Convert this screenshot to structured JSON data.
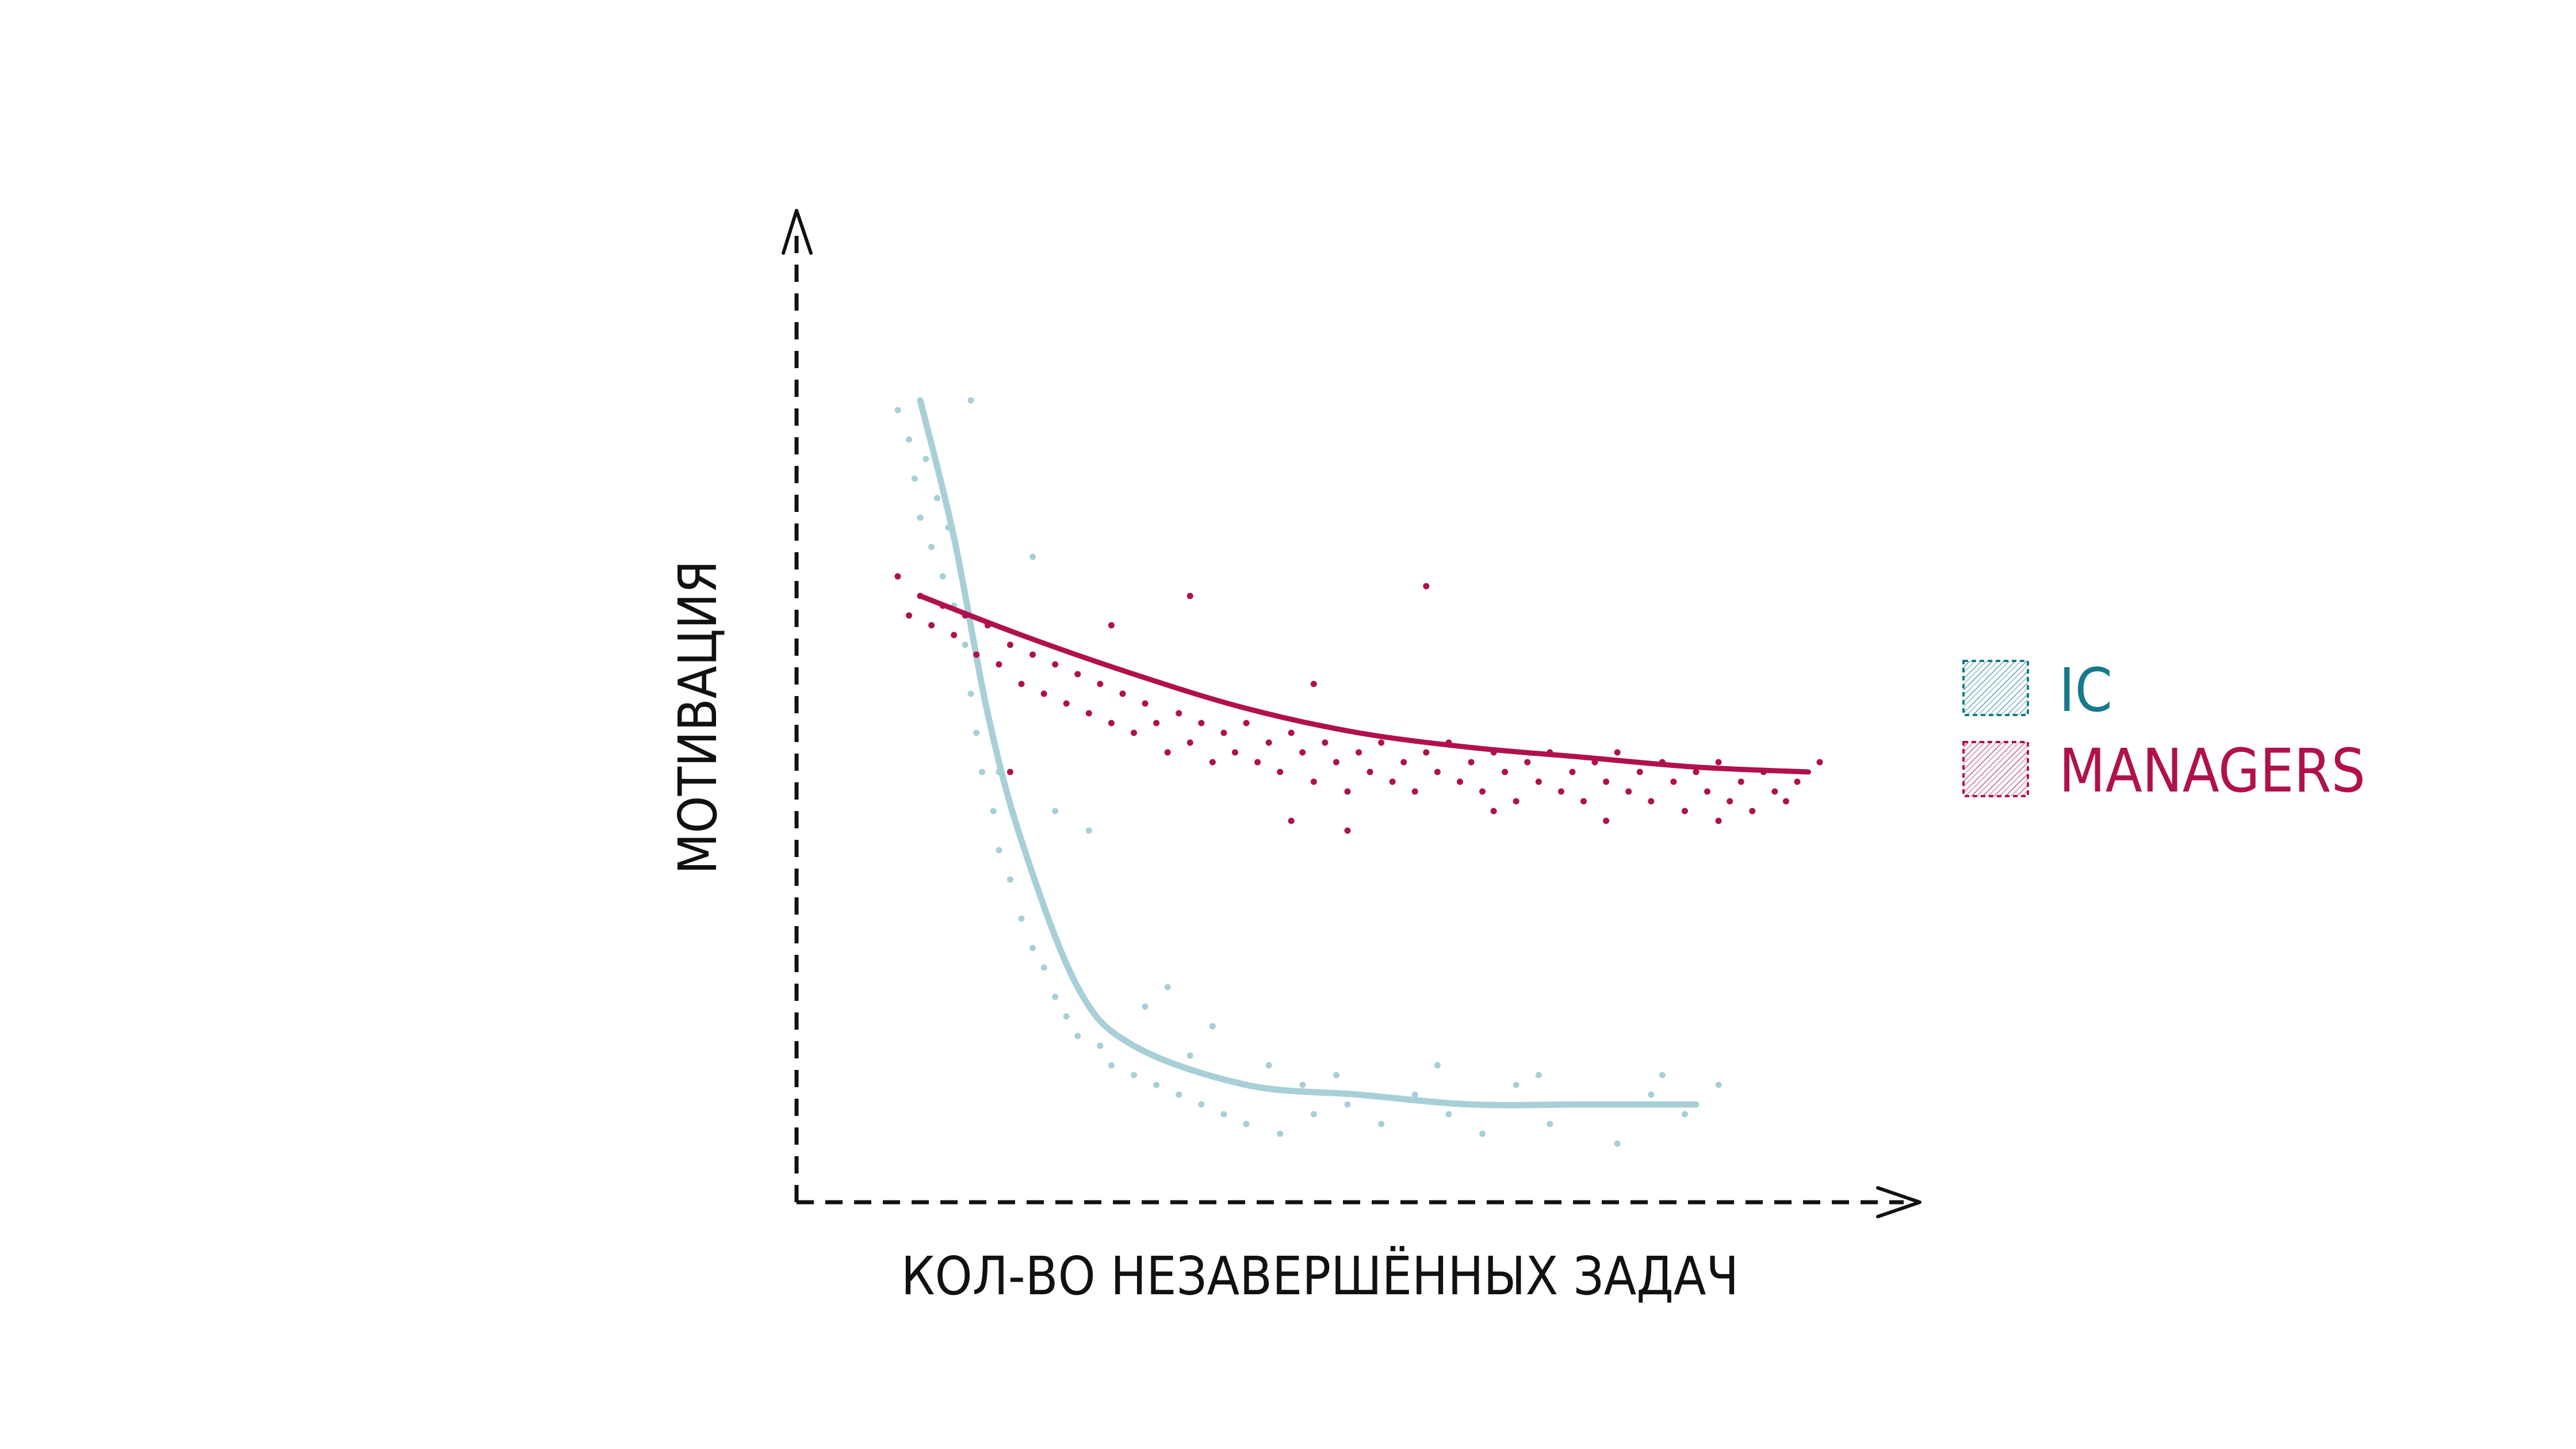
{
  "chart_data": {
    "type": "scatter",
    "title": "",
    "xlabel": "КОЛ-ВО НЕЗАВЕРШЁННЫХ ЗАДАЧ",
    "ylabel": "МОТИВАЦИЯ",
    "xlim": [
      0,
      100
    ],
    "ylim": [
      0,
      100
    ],
    "grid": false,
    "legend_position": "right",
    "colors": {
      "ic": "#a8cfd7",
      "ic_text": "#167a8c",
      "managers": "#b0114c"
    },
    "series": [
      {
        "name": "IC",
        "trend": [
          {
            "x": 11,
            "y": 82
          },
          {
            "x": 14,
            "y": 68
          },
          {
            "x": 17,
            "y": 50
          },
          {
            "x": 20,
            "y": 37
          },
          {
            "x": 25,
            "y": 22
          },
          {
            "x": 30,
            "y": 16
          },
          {
            "x": 40,
            "y": 12
          },
          {
            "x": 50,
            "y": 11
          },
          {
            "x": 60,
            "y": 10
          },
          {
            "x": 70,
            "y": 10
          },
          {
            "x": 80,
            "y": 10
          }
        ],
        "points": [
          {
            "x": 9,
            "y": 81
          },
          {
            "x": 10,
            "y": 78
          },
          {
            "x": 10.5,
            "y": 74
          },
          {
            "x": 11,
            "y": 70
          },
          {
            "x": 11.5,
            "y": 76
          },
          {
            "x": 12,
            "y": 67
          },
          {
            "x": 12.5,
            "y": 72
          },
          {
            "x": 13,
            "y": 64
          },
          {
            "x": 13.5,
            "y": 69
          },
          {
            "x": 14,
            "y": 61
          },
          {
            "x": 15,
            "y": 57
          },
          {
            "x": 15.5,
            "y": 52
          },
          {
            "x": 16,
            "y": 48
          },
          {
            "x": 16.5,
            "y": 44
          },
          {
            "x": 17.5,
            "y": 40
          },
          {
            "x": 18,
            "y": 36
          },
          {
            "x": 19,
            "y": 33
          },
          {
            "x": 20,
            "y": 29
          },
          {
            "x": 21,
            "y": 26
          },
          {
            "x": 22,
            "y": 24
          },
          {
            "x": 23,
            "y": 21
          },
          {
            "x": 24,
            "y": 19
          },
          {
            "x": 25,
            "y": 17
          },
          {
            "x": 27,
            "y": 16
          },
          {
            "x": 28,
            "y": 14
          },
          {
            "x": 30,
            "y": 13
          },
          {
            "x": 32,
            "y": 12
          },
          {
            "x": 34,
            "y": 11
          },
          {
            "x": 36,
            "y": 10
          },
          {
            "x": 38,
            "y": 9
          },
          {
            "x": 40,
            "y": 8
          },
          {
            "x": 43,
            "y": 7
          },
          {
            "x": 46,
            "y": 9
          },
          {
            "x": 49,
            "y": 10
          },
          {
            "x": 52,
            "y": 8
          },
          {
            "x": 55,
            "y": 11
          },
          {
            "x": 58,
            "y": 9
          },
          {
            "x": 61,
            "y": 7
          },
          {
            "x": 64,
            "y": 12
          },
          {
            "x": 67,
            "y": 8
          },
          {
            "x": 70,
            "y": 10
          },
          {
            "x": 73,
            "y": 6
          },
          {
            "x": 76,
            "y": 11
          },
          {
            "x": 79,
            "y": 9
          },
          {
            "x": 82,
            "y": 12
          },
          {
            "x": 15.5,
            "y": 82
          },
          {
            "x": 21,
            "y": 66
          },
          {
            "x": 23,
            "y": 40
          },
          {
            "x": 26,
            "y": 38
          },
          {
            "x": 18,
            "y": 44
          },
          {
            "x": 31,
            "y": 20
          },
          {
            "x": 35,
            "y": 15
          },
          {
            "x": 42,
            "y": 14
          },
          {
            "x": 48,
            "y": 13
          },
          {
            "x": 57,
            "y": 14
          },
          {
            "x": 66,
            "y": 13
          },
          {
            "x": 77,
            "y": 13
          },
          {
            "x": 33,
            "y": 22
          },
          {
            "x": 37,
            "y": 18
          },
          {
            "x": 45,
            "y": 12
          }
        ]
      },
      {
        "name": "MANAGERS",
        "trend": [
          {
            "x": 11,
            "y": 62
          },
          {
            "x": 20,
            "y": 58
          },
          {
            "x": 30,
            "y": 54
          },
          {
            "x": 40,
            "y": 50.5
          },
          {
            "x": 50,
            "y": 48
          },
          {
            "x": 60,
            "y": 46.5
          },
          {
            "x": 70,
            "y": 45.5
          },
          {
            "x": 80,
            "y": 44.5
          },
          {
            "x": 90,
            "y": 44
          }
        ],
        "points": [
          {
            "x": 9,
            "y": 64
          },
          {
            "x": 10,
            "y": 60
          },
          {
            "x": 11,
            "y": 62
          },
          {
            "x": 12,
            "y": 59
          },
          {
            "x": 13,
            "y": 61
          },
          {
            "x": 14,
            "y": 58
          },
          {
            "x": 15,
            "y": 60
          },
          {
            "x": 16,
            "y": 56
          },
          {
            "x": 17,
            "y": 59
          },
          {
            "x": 18,
            "y": 55
          },
          {
            "x": 19,
            "y": 57
          },
          {
            "x": 20,
            "y": 53
          },
          {
            "x": 21,
            "y": 56
          },
          {
            "x": 22,
            "y": 52
          },
          {
            "x": 23,
            "y": 55
          },
          {
            "x": 24,
            "y": 51
          },
          {
            "x": 25,
            "y": 54
          },
          {
            "x": 26,
            "y": 50
          },
          {
            "x": 27,
            "y": 53
          },
          {
            "x": 28,
            "y": 49
          },
          {
            "x": 29,
            "y": 52
          },
          {
            "x": 30,
            "y": 48
          },
          {
            "x": 31,
            "y": 51
          },
          {
            "x": 32,
            "y": 49
          },
          {
            "x": 33,
            "y": 46
          },
          {
            "x": 34,
            "y": 50
          },
          {
            "x": 35,
            "y": 47
          },
          {
            "x": 36,
            "y": 49
          },
          {
            "x": 37,
            "y": 45
          },
          {
            "x": 38,
            "y": 48
          },
          {
            "x": 39,
            "y": 46
          },
          {
            "x": 40,
            "y": 49
          },
          {
            "x": 41,
            "y": 45
          },
          {
            "x": 42,
            "y": 47
          },
          {
            "x": 43,
            "y": 44
          },
          {
            "x": 44,
            "y": 48
          },
          {
            "x": 45,
            "y": 46
          },
          {
            "x": 46,
            "y": 43
          },
          {
            "x": 47,
            "y": 47
          },
          {
            "x": 48,
            "y": 45
          },
          {
            "x": 49,
            "y": 42
          },
          {
            "x": 50,
            "y": 46
          },
          {
            "x": 51,
            "y": 44
          },
          {
            "x": 52,
            "y": 47
          },
          {
            "x": 53,
            "y": 43
          },
          {
            "x": 54,
            "y": 45
          },
          {
            "x": 55,
            "y": 42
          },
          {
            "x": 56,
            "y": 46
          },
          {
            "x": 57,
            "y": 44
          },
          {
            "x": 58,
            "y": 47
          },
          {
            "x": 59,
            "y": 43
          },
          {
            "x": 60,
            "y": 45
          },
          {
            "x": 61,
            "y": 42
          },
          {
            "x": 62,
            "y": 46
          },
          {
            "x": 63,
            "y": 44
          },
          {
            "x": 64,
            "y": 41
          },
          {
            "x": 65,
            "y": 45
          },
          {
            "x": 66,
            "y": 43
          },
          {
            "x": 67,
            "y": 46
          },
          {
            "x": 68,
            "y": 42
          },
          {
            "x": 69,
            "y": 44
          },
          {
            "x": 70,
            "y": 41
          },
          {
            "x": 71,
            "y": 45
          },
          {
            "x": 72,
            "y": 43
          },
          {
            "x": 73,
            "y": 46
          },
          {
            "x": 74,
            "y": 42
          },
          {
            "x": 75,
            "y": 44
          },
          {
            "x": 76,
            "y": 41
          },
          {
            "x": 77,
            "y": 45
          },
          {
            "x": 78,
            "y": 43
          },
          {
            "x": 79,
            "y": 40
          },
          {
            "x": 80,
            "y": 44
          },
          {
            "x": 81,
            "y": 42
          },
          {
            "x": 82,
            "y": 45
          },
          {
            "x": 83,
            "y": 41
          },
          {
            "x": 84,
            "y": 43
          },
          {
            "x": 85,
            "y": 40
          },
          {
            "x": 86,
            "y": 44
          },
          {
            "x": 87,
            "y": 42
          },
          {
            "x": 88,
            "y": 41
          },
          {
            "x": 89,
            "y": 43
          },
          {
            "x": 91,
            "y": 45
          },
          {
            "x": 35,
            "y": 62
          },
          {
            "x": 49,
            "y": 38
          },
          {
            "x": 56,
            "y": 63
          },
          {
            "x": 19,
            "y": 44
          },
          {
            "x": 46,
            "y": 53
          },
          {
            "x": 28,
            "y": 59
          },
          {
            "x": 44,
            "y": 39
          },
          {
            "x": 62,
            "y": 40
          },
          {
            "x": 72,
            "y": 39
          },
          {
            "x": 82,
            "y": 39
          }
        ]
      }
    ]
  }
}
